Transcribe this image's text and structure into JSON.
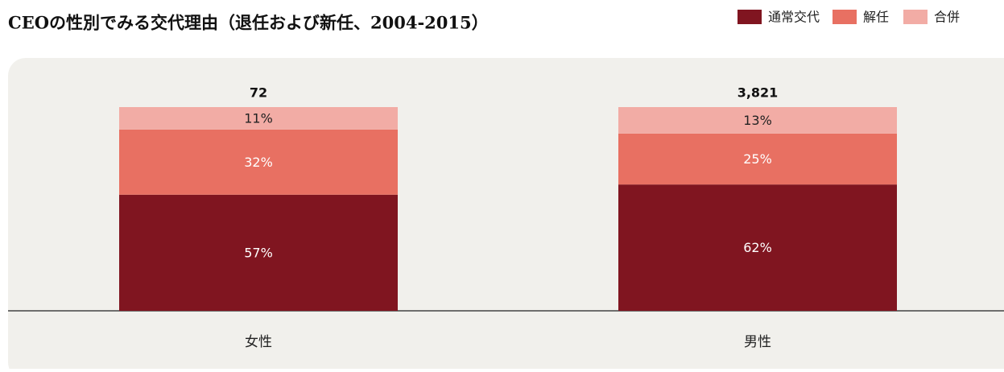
{
  "chart_data": {
    "type": "stacked-bar",
    "title": "CEOの性別でみる交代理由（退任および新任、2004-2015）",
    "categories": [
      "女性",
      "男性"
    ],
    "series": [
      {
        "name": "通常交代",
        "color": "#801520",
        "values": [
          57,
          62
        ],
        "value_labels": [
          "57%",
          "62%"
        ]
      },
      {
        "name": "解任",
        "color": "#e87062",
        "values": [
          32,
          25
        ],
        "value_labels": [
          "32%",
          "25%"
        ]
      },
      {
        "name": "合併",
        "color": "#f2aca5",
        "values": [
          11,
          13
        ],
        "value_labels": [
          "11%",
          "13%"
        ]
      }
    ],
    "totals": {
      "values": [
        72,
        3821
      ],
      "value_labels": [
        "72",
        "3,821"
      ]
    }
  }
}
